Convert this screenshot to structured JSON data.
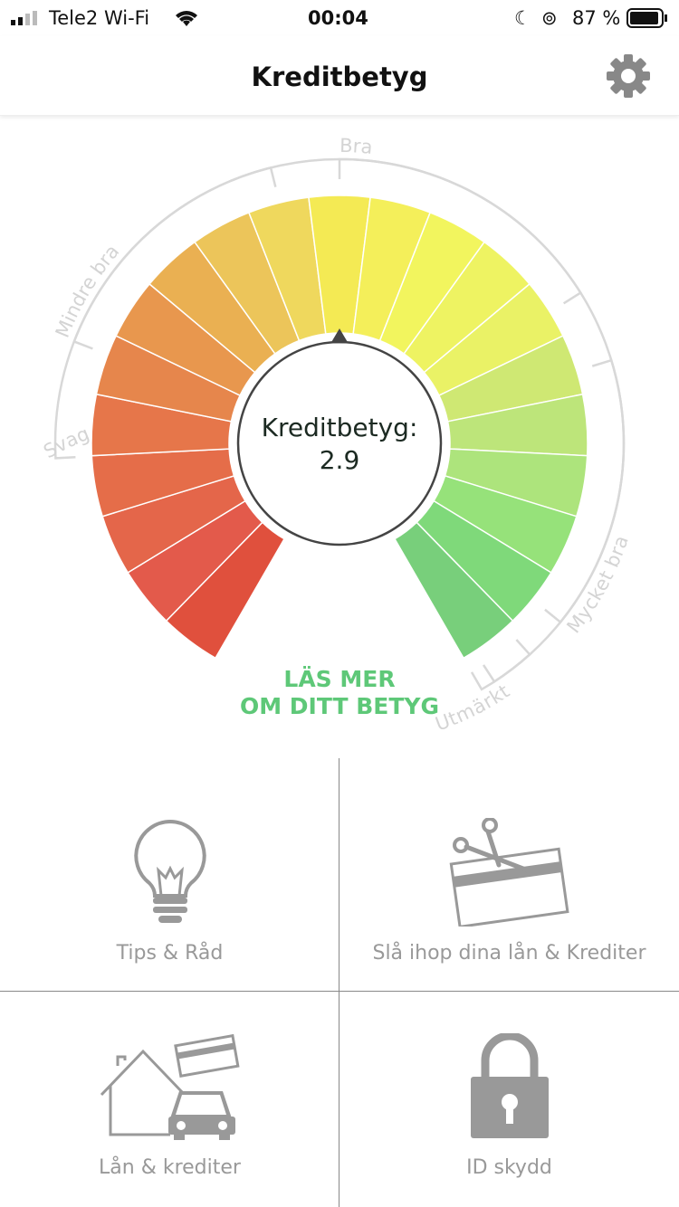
{
  "status_bar": {
    "carrier": "Tele2 Wi-Fi",
    "time": "00:04",
    "battery": "87 %"
  },
  "header": {
    "title": "Kreditbetyg",
    "settings_icon": "gear-icon"
  },
  "gauge": {
    "label": "Kreditbetyg:",
    "value": "2.9",
    "pointer_segment": 10,
    "segment_colors": [
      "#e0503d",
      "#e35a4b",
      "#e4664a",
      "#e56d49",
      "#e6764a",
      "#e6864c",
      "#e8974e",
      "#eab052",
      "#ecc55a",
      "#efd85d",
      "#f4ea54",
      "#f4ef5a",
      "#f2f55e",
      "#eef362",
      "#eaf266",
      "#cfe873",
      "#bde57a",
      "#ade47c",
      "#96e27a",
      "#7fd97a",
      "#78cf7b"
    ],
    "ranges": [
      {
        "label": "Svag",
        "from": 150,
        "to": 267
      },
      {
        "label": "Mindre bra",
        "from": 291,
        "to": 346
      },
      {
        "label": "Bra",
        "from": 0,
        "to": 58
      },
      {
        "label": "Mycket bra",
        "from": 73,
        "to": 129
      },
      {
        "label": "Utmärkt",
        "from": 138,
        "to": 147
      }
    ],
    "read_more_line1": "LÄS MER",
    "read_more_line2": "OM DITT BETYG",
    "accent": "#5ec878"
  },
  "tiles": [
    {
      "label": "Tips & Råd",
      "icon": "lightbulb-icon"
    },
    {
      "label": "Slå ihop dina lån & Krediter",
      "icon": "scissors-card-icon"
    },
    {
      "label": "Lån & krediter",
      "icon": "house-car-card-icon"
    },
    {
      "label": "ID skydd",
      "icon": "padlock-icon"
    }
  ]
}
